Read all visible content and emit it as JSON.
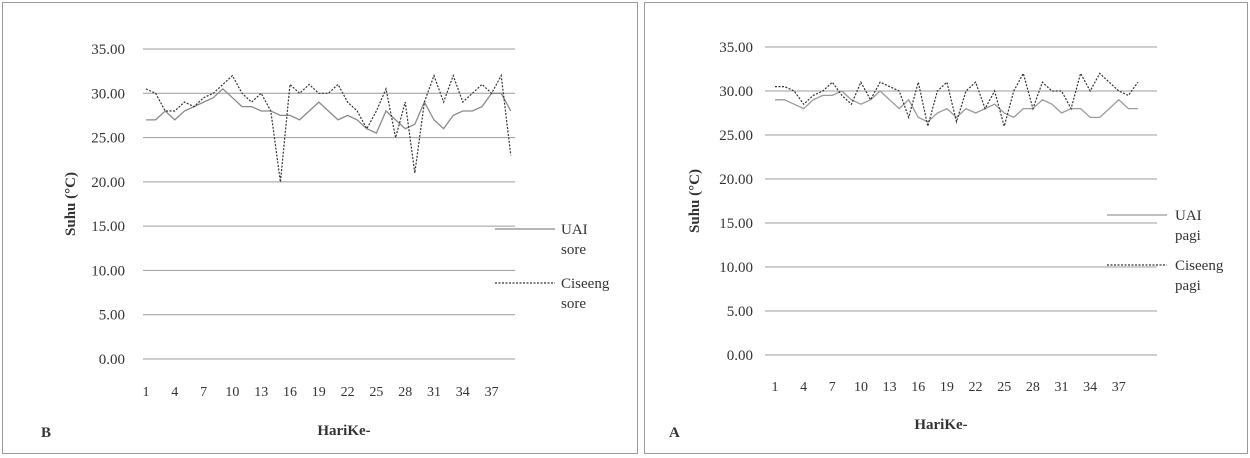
{
  "chart_data": [
    {
      "type": "line",
      "panel_letter": "B",
      "xlabel": "HariKe-",
      "ylabel": "Suhu (°C)",
      "ylim": [
        0,
        35
      ],
      "ytick_labels": [
        "0.00",
        "5.00",
        "10.00",
        "15.00",
        "20.00",
        "25.00",
        "30.00",
        "35.00"
      ],
      "x": [
        1,
        2,
        3,
        4,
        5,
        6,
        7,
        8,
        9,
        10,
        11,
        12,
        13,
        14,
        15,
        16,
        17,
        18,
        19,
        20,
        21,
        22,
        23,
        24,
        25,
        26,
        27,
        28,
        29,
        30,
        31,
        32,
        33,
        34,
        35,
        36,
        37,
        38,
        39
      ],
      "xtick_labels": [
        "1",
        "4",
        "7",
        "10",
        "13",
        "16",
        "19",
        "22",
        "25",
        "28",
        "31",
        "34",
        "37"
      ],
      "grid": true,
      "legend_position": "right",
      "series": [
        {
          "name": "UAI sore",
          "style": "solid",
          "color": "#8a8a8a",
          "values": [
            27,
            27,
            28,
            27,
            28,
            28.5,
            29,
            29.5,
            30.5,
            29.5,
            28.5,
            28.5,
            28,
            28,
            27.5,
            27.5,
            27,
            28,
            29,
            28,
            27,
            27.5,
            27,
            26,
            25.5,
            28,
            27,
            26,
            26.5,
            29,
            27,
            26,
            27.5,
            28,
            28,
            28.5,
            30,
            30,
            28
          ]
        },
        {
          "name": "Ciseeng sore",
          "style": "dashed",
          "color": "#333333",
          "values": [
            30.5,
            30,
            28,
            28,
            29,
            28.5,
            29.5,
            30,
            31,
            32,
            30,
            29,
            30,
            28,
            20,
            31,
            30,
            31,
            30,
            30,
            31,
            29,
            28,
            26,
            28,
            30.5,
            25,
            29,
            21,
            29,
            32,
            29,
            32,
            29,
            30,
            31,
            30,
            32,
            23
          ]
        }
      ]
    },
    {
      "type": "line",
      "panel_letter": "A",
      "xlabel": "HariKe-",
      "ylabel": "Suhu (°C)",
      "ylim": [
        0,
        35
      ],
      "ytick_labels": [
        "0.00",
        "5.00",
        "10.00",
        "15.00",
        "20.00",
        "25.00",
        "30.00",
        "35.00"
      ],
      "x": [
        1,
        2,
        3,
        4,
        5,
        6,
        7,
        8,
        9,
        10,
        11,
        12,
        13,
        14,
        15,
        16,
        17,
        18,
        19,
        20,
        21,
        22,
        23,
        24,
        25,
        26,
        27,
        28,
        29,
        30,
        31,
        32,
        33,
        34,
        35,
        36,
        37,
        38,
        39
      ],
      "xtick_labels": [
        "1",
        "4",
        "7",
        "10",
        "13",
        "16",
        "19",
        "22",
        "25",
        "28",
        "31",
        "34",
        "37"
      ],
      "grid": true,
      "legend_position": "right",
      "series": [
        {
          "name": "UAI pagi",
          "style": "solid",
          "color": "#9a9a9a",
          "values": [
            29,
            29,
            28.5,
            28,
            29,
            29.5,
            29.5,
            30,
            29,
            28.5,
            29,
            30,
            29,
            28,
            29,
            27,
            26.5,
            27.5,
            28,
            27,
            28,
            27.5,
            28,
            28.5,
            27.5,
            27,
            28,
            28,
            29,
            28.5,
            27.5,
            28,
            28,
            27,
            27,
            28,
            29,
            28,
            28
          ]
        },
        {
          "name": "Ciseeng pagi",
          "style": "dashed",
          "color": "#333333",
          "values": [
            30.5,
            30.5,
            30,
            28.5,
            29.5,
            30,
            31,
            29.5,
            28.5,
            31,
            29,
            31,
            30.5,
            30,
            27,
            31,
            26,
            30,
            31,
            26.5,
            30,
            31,
            28,
            30,
            26,
            30,
            32,
            28,
            31,
            30,
            30,
            28,
            32,
            30,
            32,
            31,
            30,
            29.5,
            31
          ]
        }
      ]
    }
  ]
}
